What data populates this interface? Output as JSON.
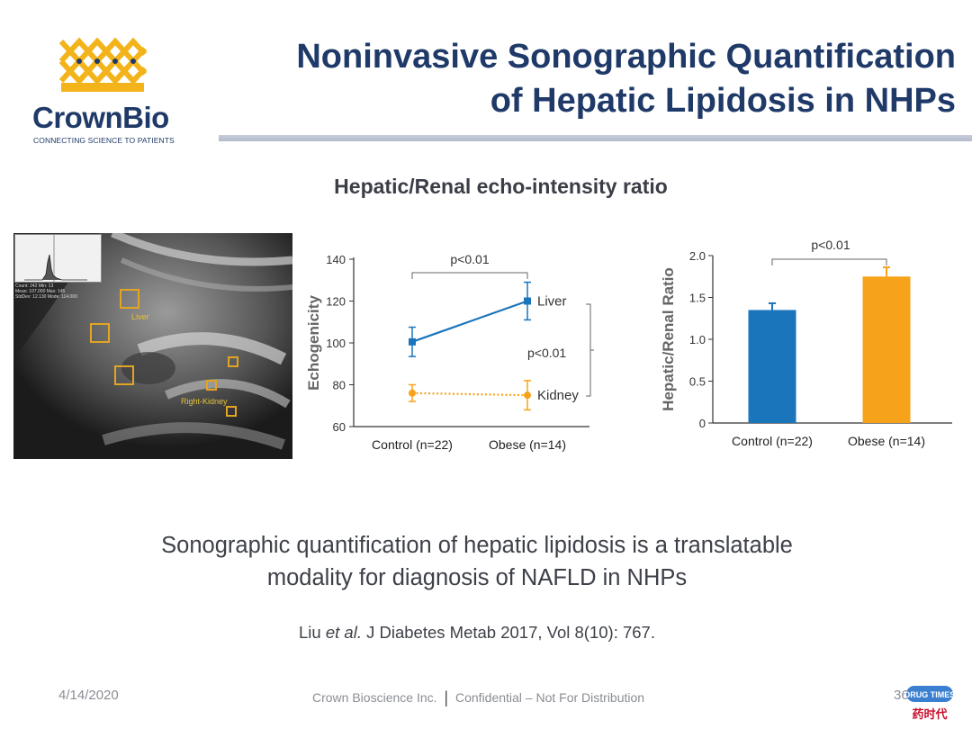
{
  "slide": {
    "title_line1": "Noninvasive Sonographic Quantification",
    "title_line2": "of Hepatic Lipidosis in NHPs",
    "section_heading": "Hepatic/Renal echo-intensity ratio"
  },
  "brand": {
    "name": "CrownBio",
    "tagline": "CONNECTING SCIENCE TO PATIENTS",
    "colors": {
      "gold": "#f3b41b",
      "navy": "#1f3a68"
    }
  },
  "ultrasound": {
    "labels": {
      "liver": "Liver",
      "kidney": "Right-Kidney"
    },
    "stats": [
      "Count: 242   Min: 13",
      "Mean: 107.000   Max: 145",
      "StdDev: 12.130   Mode: 114.000"
    ],
    "box_color": "#e2a522"
  },
  "chart_data": [
    {
      "type": "line",
      "ylabel": "Echogenicity",
      "ylim": [
        60,
        140
      ],
      "yticks": [
        "60",
        "80",
        "100",
        "120",
        "140"
      ],
      "categories": [
        "Control (n=22)",
        "Obese (n=14)"
      ],
      "series": [
        {
          "name": "Liver",
          "values": [
            100.5,
            120
          ],
          "errors": [
            7,
            9
          ],
          "color": "#1a75bb",
          "style": "solid"
        },
        {
          "name": "Kidney",
          "values": [
            76,
            75
          ],
          "errors": [
            4,
            7
          ],
          "color": "#f7a21b",
          "style": "dotted"
        }
      ],
      "annotations": {
        "top": "p<0.01",
        "right": "p<0.01"
      },
      "grid": false
    },
    {
      "type": "bar",
      "ylabel": "Hepatic/Renal Ratio",
      "ylim": [
        0,
        2.0
      ],
      "yticks": [
        "0",
        "0.5",
        "1.0",
        "1.5",
        "2.0"
      ],
      "categories": [
        "Control (n=22)",
        "Obese (n=14)"
      ],
      "values": [
        1.35,
        1.75
      ],
      "errors": [
        0.08,
        0.11
      ],
      "colors": [
        "#1a75bb",
        "#f7a21b"
      ],
      "annotations": {
        "top": "p<0.01"
      },
      "grid": false
    }
  ],
  "conclusion": {
    "line1": "Sonographic quantification of hepatic lipidosis is a translatable",
    "line2": "modality for diagnosis of NAFLD in NHPs"
  },
  "citation": {
    "author": "Liu",
    "etal": "et al.",
    "rest": "J Diabetes Metab 2017, Vol 8(10): 767."
  },
  "footer": {
    "date": "4/14/2020",
    "company": "Crown Bioscience Inc.",
    "separator": "|",
    "confidential": "Confidential – Not For Distribution",
    "page_number": "36"
  },
  "watermark": {
    "brand_en": "DRUG TIMES",
    "brand_cn": "药时代"
  }
}
